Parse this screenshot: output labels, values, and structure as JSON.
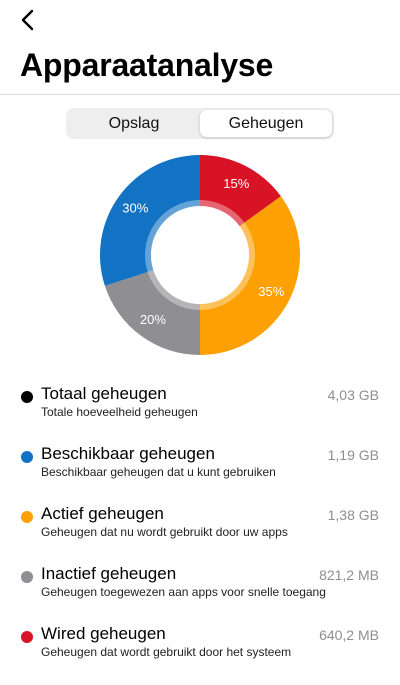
{
  "header": {
    "back_icon": "chevron-left-icon",
    "title": "Apparaatanalyse"
  },
  "tabs": [
    {
      "label": "Opslag",
      "active": false
    },
    {
      "label": "Geheugen",
      "active": true
    }
  ],
  "chart_data": {
    "type": "pie",
    "categories": [
      "Wired geheugen",
      "Actief geheugen",
      "Inactief geheugen",
      "Beschikbaar geheugen"
    ],
    "values": [
      15,
      35,
      20,
      30
    ],
    "labels": [
      "15%",
      "35%",
      "20%",
      "30%"
    ],
    "colors": [
      "#d81326",
      "#fca004",
      "#8e8e93",
      "#1272c4"
    ],
    "donut": true
  },
  "legend": [
    {
      "title": "Totaal geheugen",
      "desc": "Totale hoeveelheid geheugen",
      "value": "4,03 GB",
      "color": "#000000"
    },
    {
      "title": "Beschikbaar geheugen",
      "desc": "Beschikbaar geheugen dat u kunt gebruiken",
      "value": "1,19 GB",
      "color": "#1272c4"
    },
    {
      "title": "Actief geheugen",
      "desc": "Geheugen dat nu wordt gebruikt door uw apps",
      "value": "1,38 GB",
      "color": "#fca004"
    },
    {
      "title": "Inactief geheugen",
      "desc": "Geheugen toegewezen aan apps voor snelle toegang",
      "value": "821,2 MB",
      "color": "#8e8e93"
    },
    {
      "title": "Wired geheugen",
      "desc": "Geheugen dat wordt gebruikt door het systeem",
      "value": "640,2 MB",
      "color": "#d81326"
    }
  ]
}
